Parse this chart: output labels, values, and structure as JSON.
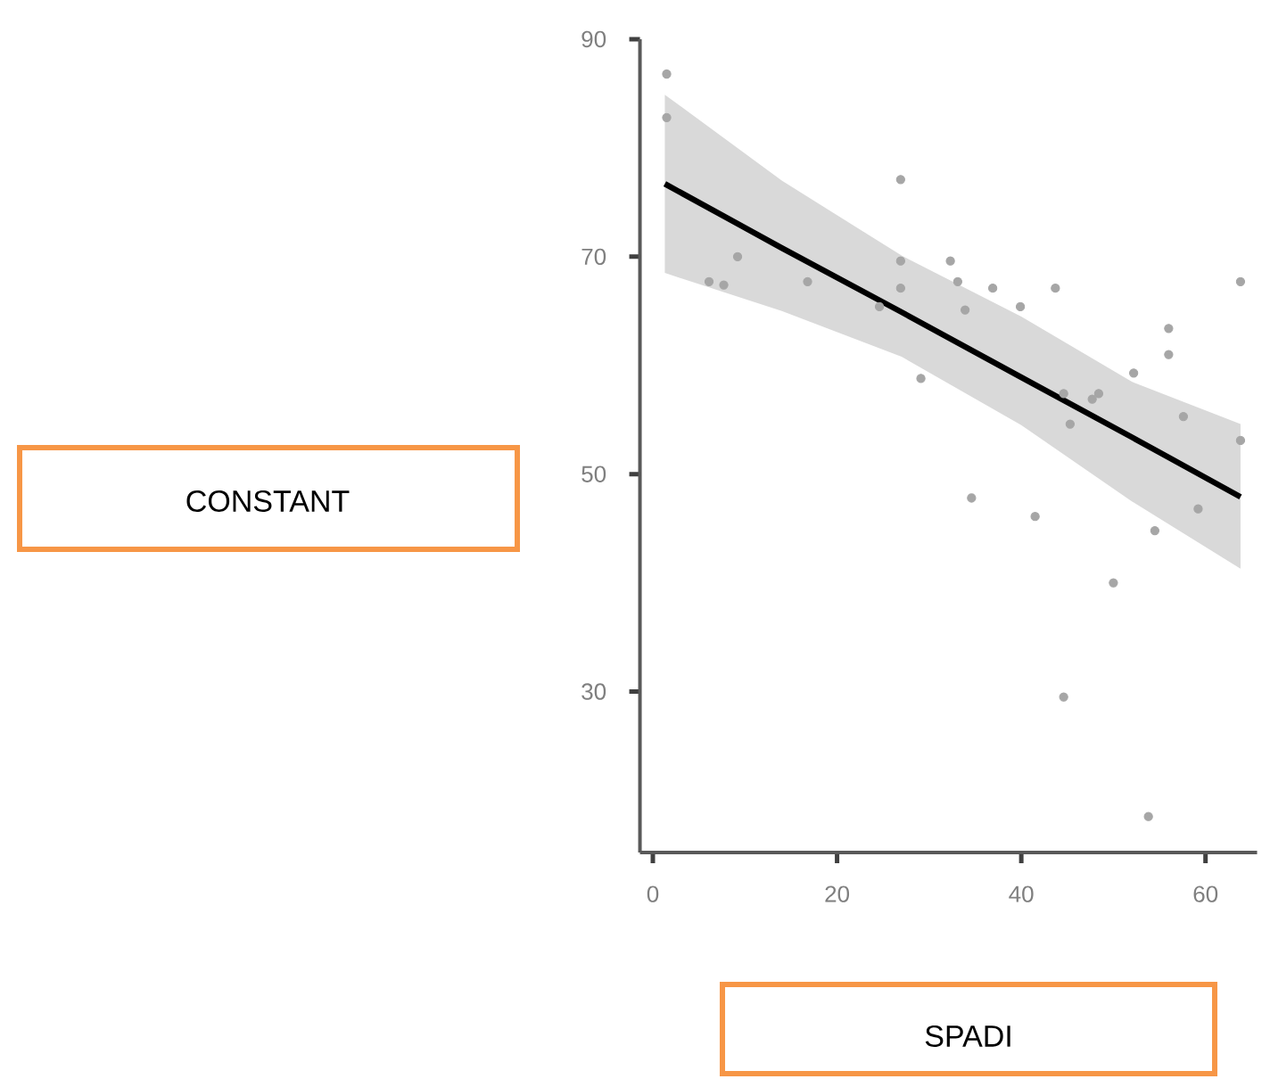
{
  "chart_data": {
    "type": "scatter",
    "xlabel": "SPADI",
    "annotations": [
      "CONSTANT"
    ],
    "xlim": [
      -1.4,
      65.6
    ],
    "ylim": [
      15.2,
      90
    ],
    "xticks": [
      0,
      20,
      40,
      60
    ],
    "yticks": [
      30,
      50,
      70,
      90
    ],
    "series": [
      {
        "marker": "circle",
        "color": "#a6a6a6",
        "x": [
          1.5,
          1.5,
          26.9,
          9.2,
          6.1,
          7.7,
          16.8,
          26.9,
          26.9,
          32.3,
          33.1,
          36.9,
          33.9,
          39.9,
          43.7,
          63.8,
          56.0,
          56.0,
          52.2,
          29.1,
          24.6,
          44.6,
          48.4,
          47.7,
          45.3,
          57.6,
          63.8,
          59.2,
          54.5,
          34.6,
          41.5,
          50.0,
          44.6,
          53.8
        ],
        "values": [
          86.8,
          82.8,
          77.1,
          70.0,
          67.7,
          67.4,
          67.7,
          69.6,
          67.1,
          69.6,
          67.7,
          67.1,
          65.1,
          65.4,
          67.1,
          67.7,
          63.4,
          61.0,
          59.3,
          58.8,
          65.4,
          57.4,
          57.4,
          56.9,
          54.6,
          55.3,
          53.1,
          46.8,
          44.8,
          47.8,
          46.1,
          40.0,
          29.5,
          18.5
        ]
      },
      {
        "type": "line",
        "marker": "none",
        "color": "#000000",
        "x": [
          1.3,
          14,
          27,
          40,
          52,
          63.8
        ],
        "values": [
          76.7,
          70.8,
          64.9,
          58.9,
          53.4,
          47.9
        ],
        "lower": [
          68.5,
          65.0,
          60.8,
          54.5,
          47.5,
          41.3
        ],
        "upper": [
          84.9,
          77.0,
          70.1,
          64.5,
          58.5,
          54.6
        ]
      }
    ]
  }
}
